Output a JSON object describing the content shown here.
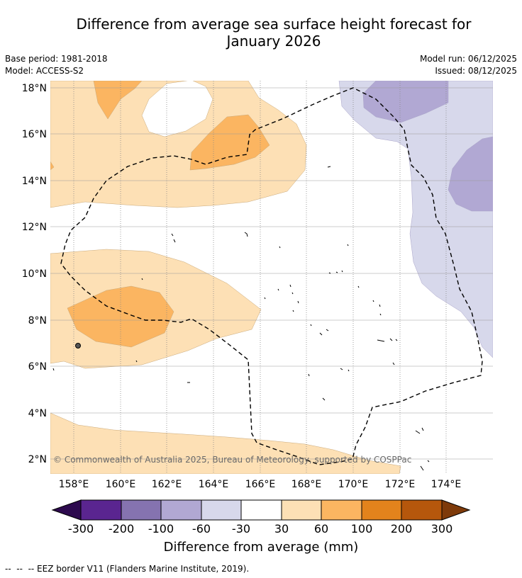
{
  "title_line1": "Difference from average sea surface height forecast for",
  "title_line2": "January 2026",
  "meta": {
    "base_period": "Base period: 1981-2018",
    "model": "Model: ACCESS-S2",
    "model_run": "Model run: 06/12/2025",
    "issued": "Issued: 08/12/2025"
  },
  "map": {
    "lat_labels": [
      "18°N",
      "16°N",
      "14°N",
      "12°N",
      "10°N",
      "8°N",
      "6°N",
      "4°N",
      "2°N"
    ],
    "lon_labels": [
      "158°E",
      "160°E",
      "162°E",
      "164°E",
      "166°E",
      "168°E",
      "170°E",
      "172°E",
      "174°E"
    ],
    "copyright": "© Commonwealth of Australia 2025, Bureau of Meteorology, supported by COSPPac"
  },
  "colorbar": {
    "title": "Difference from average (mm)",
    "tick_labels": [
      "-300",
      "-200",
      "-100",
      "-60",
      "-30",
      "30",
      "60",
      "100",
      "200",
      "300"
    ],
    "colors": {
      "below": "#2d0a4e",
      "c1": "#5a2590",
      "c2": "#8573b0",
      "c3": "#b1a8d3",
      "c4": "#d7d8eb",
      "c5": "#ffffff",
      "c6": "#fde0b5",
      "c7": "#fbb561",
      "c8": "#e3831c",
      "c9": "#b5570c",
      "above": "#7e3a0a"
    }
  },
  "footnote": "--  --  -- EEZ border V11 (Flanders Marine Institute, 2019)."
}
